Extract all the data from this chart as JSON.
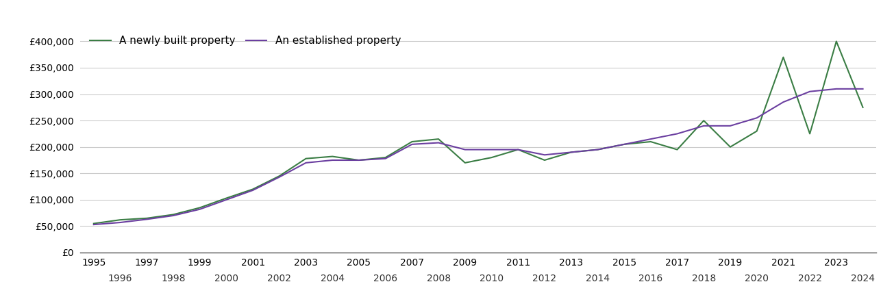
{
  "newly_built": {
    "years": [
      1995,
      1996,
      1997,
      1998,
      1999,
      2000,
      2001,
      2002,
      2003,
      2004,
      2005,
      2006,
      2007,
      2008,
      2009,
      2010,
      2011,
      2012,
      2013,
      2014,
      2015,
      2016,
      2017,
      2018,
      2019,
      2020,
      2021,
      2022,
      2023,
      2024
    ],
    "values": [
      55000,
      62000,
      65000,
      72000,
      85000,
      103000,
      120000,
      145000,
      178000,
      182000,
      175000,
      180000,
      210000,
      215000,
      170000,
      180000,
      195000,
      175000,
      190000,
      195000,
      205000,
      210000,
      195000,
      250000,
      200000,
      230000,
      370000,
      225000,
      400000,
      275000
    ]
  },
  "established": {
    "years": [
      1995,
      1996,
      1997,
      1998,
      1999,
      2000,
      2001,
      2002,
      2003,
      2004,
      2005,
      2006,
      2007,
      2008,
      2009,
      2010,
      2011,
      2012,
      2013,
      2014,
      2015,
      2016,
      2017,
      2018,
      2019,
      2020,
      2021,
      2022,
      2023,
      2024
    ],
    "values": [
      53000,
      57000,
      63000,
      70000,
      82000,
      100000,
      118000,
      143000,
      170000,
      175000,
      175000,
      178000,
      205000,
      208000,
      195000,
      195000,
      195000,
      185000,
      190000,
      195000,
      205000,
      215000,
      225000,
      240000,
      240000,
      255000,
      285000,
      305000,
      310000,
      310000
    ]
  },
  "newly_color": "#3a7d44",
  "established_color": "#6b3fa0",
  "newly_label": "A newly built property",
  "established_label": "An established property",
  "ylim": [
    0,
    420000
  ],
  "yticks": [
    0,
    50000,
    100000,
    150000,
    200000,
    250000,
    300000,
    350000,
    400000
  ],
  "xlim": [
    1994.5,
    2024.5
  ],
  "xlabel_odd": [
    1995,
    1997,
    1999,
    2001,
    2003,
    2005,
    2007,
    2009,
    2011,
    2013,
    2015,
    2017,
    2019,
    2021,
    2023
  ],
  "xlabel_even": [
    1996,
    1998,
    2000,
    2002,
    2004,
    2006,
    2008,
    2010,
    2012,
    2014,
    2016,
    2018,
    2020,
    2022,
    2024
  ],
  "background_color": "#ffffff",
  "grid_color": "#cccccc",
  "line_width": 1.5,
  "legend_fontsize": 11,
  "tick_fontsize": 10
}
